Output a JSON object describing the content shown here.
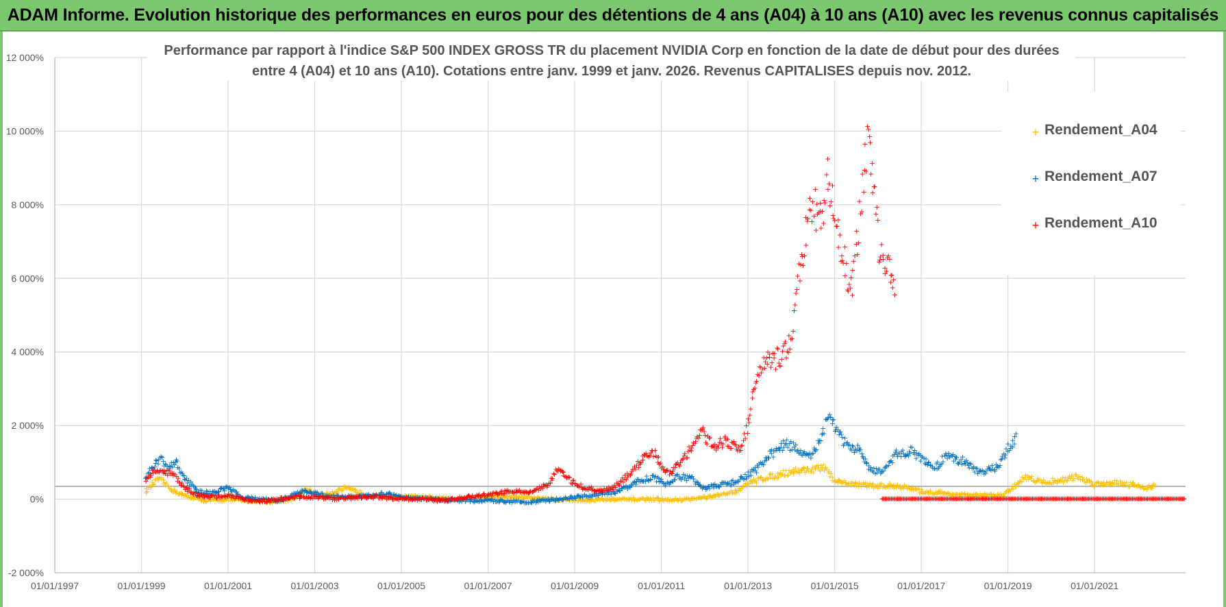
{
  "header": {
    "title": "ADAM Informe. Evolution historique des performances en euros pour des détentions de 4 ans (A04) à 10 ans (A10) avec les revenus connus capitalisés"
  },
  "colors": {
    "banner": "#7cc86e",
    "A04": "#ffc000",
    "A07": "#0070c0",
    "A10": "#ff0000",
    "grid": "#d9d9d9",
    "text": "#595959"
  },
  "chart_data": {
    "type": "scatter",
    "title_lines": [
      "Performance par rapport à l'indice S&P 500 INDEX GROSS TR  du placement NVIDIA Corp en fonction de la date de début pour des durées",
      "entre 4 (A04) et 10 ans (A10). Cotations entre janv. 1999 et janv. 2026. Revenus CAPITALISES depuis nov. 2012."
    ],
    "xlabel": "",
    "ylabel": "",
    "x_range": [
      1997.0,
      2023.1
    ],
    "ylim": [
      -2000,
      12000
    ],
    "x_ticks": [
      {
        "year": 1997,
        "label": "01/01/1997"
      },
      {
        "year": 1999,
        "label": "01/01/1999"
      },
      {
        "year": 2001,
        "label": "01/01/2001"
      },
      {
        "year": 2003,
        "label": "01/01/2003"
      },
      {
        "year": 2005,
        "label": "01/01/2005"
      },
      {
        "year": 2007,
        "label": "01/01/2007"
      },
      {
        "year": 2009,
        "label": "01/01/2009"
      },
      {
        "year": 2011,
        "label": "01/01/2011"
      },
      {
        "year": 2013,
        "label": "01/01/2013"
      },
      {
        "year": 2015,
        "label": "01/01/2015"
      },
      {
        "year": 2017,
        "label": "01/01/2017"
      },
      {
        "year": 2019,
        "label": "01/01/2019"
      },
      {
        "year": 2021,
        "label": "01/01/2021"
      }
    ],
    "y_ticks": [
      {
        "value": -2000,
        "label": "-2 000%"
      },
      {
        "value": 0,
        "label": "0%"
      },
      {
        "value": 2000,
        "label": "2 000%"
      },
      {
        "value": 4000,
        "label": "4 000%"
      },
      {
        "value": 6000,
        "label": "6 000%"
      },
      {
        "value": 8000,
        "label": "8 000%"
      },
      {
        "value": 10000,
        "label": "10 000%"
      },
      {
        "value": 12000,
        "label": "12 000%"
      }
    ],
    "reference_line": 350,
    "series": [
      {
        "name": "Rendement_A04",
        "color": "#ffc000",
        "points": [
          [
            1999.1,
            200
          ],
          [
            1999.4,
            550
          ],
          [
            1999.7,
            250
          ],
          [
            2000.0,
            80
          ],
          [
            2000.5,
            -50
          ],
          [
            2001.0,
            -20
          ],
          [
            2001.5,
            -50
          ],
          [
            2002.0,
            -80
          ],
          [
            2002.5,
            0
          ],
          [
            2002.8,
            250
          ],
          [
            2003.2,
            100
          ],
          [
            2003.7,
            280
          ],
          [
            2004.2,
            120
          ],
          [
            2004.7,
            50
          ],
          [
            2005.2,
            60
          ],
          [
            2005.7,
            30
          ],
          [
            2006.2,
            0
          ],
          [
            2006.7,
            30
          ],
          [
            2007.2,
            60
          ],
          [
            2007.7,
            50
          ],
          [
            2008.2,
            20
          ],
          [
            2008.7,
            -20
          ],
          [
            2009.2,
            -40
          ],
          [
            2009.7,
            -20
          ],
          [
            2010.2,
            -20
          ],
          [
            2010.7,
            0
          ],
          [
            2011.2,
            -40
          ],
          [
            2011.7,
            0
          ],
          [
            2012.2,
            60
          ],
          [
            2012.7,
            200
          ],
          [
            2013.0,
            400
          ],
          [
            2013.3,
            550
          ],
          [
            2013.7,
            650
          ],
          [
            2014.0,
            750
          ],
          [
            2014.5,
            800
          ],
          [
            2014.8,
            850
          ],
          [
            2015.0,
            450
          ],
          [
            2015.5,
            400
          ],
          [
            2016.0,
            350
          ],
          [
            2016.5,
            350
          ],
          [
            2017.0,
            200
          ],
          [
            2017.5,
            150
          ],
          [
            2018.0,
            100
          ],
          [
            2018.5,
            100
          ],
          [
            2018.9,
            100
          ],
          [
            2019.0,
            200
          ],
          [
            2019.2,
            400
          ],
          [
            2019.4,
            600
          ],
          [
            2019.8,
            450
          ],
          [
            2020.2,
            500
          ],
          [
            2020.6,
            600
          ],
          [
            2021.0,
            400
          ],
          [
            2021.5,
            450
          ],
          [
            2021.8,
            400
          ],
          [
            2022.2,
            300
          ],
          [
            2022.4,
            350
          ]
        ]
      },
      {
        "name": "Rendement_A07",
        "color": "#0070c0",
        "points": [
          [
            1999.1,
            600
          ],
          [
            1999.3,
            900
          ],
          [
            1999.45,
            1100
          ],
          [
            1999.6,
            800
          ],
          [
            1999.8,
            1000
          ],
          [
            2000.0,
            550
          ],
          [
            2000.3,
            200
          ],
          [
            2000.6,
            150
          ],
          [
            2001.0,
            300
          ],
          [
            2001.3,
            50
          ],
          [
            2001.7,
            0
          ],
          [
            2002.2,
            -50
          ],
          [
            2002.7,
            200
          ],
          [
            2003.0,
            150
          ],
          [
            2003.3,
            80
          ],
          [
            2003.7,
            50
          ],
          [
            2004.2,
            70
          ],
          [
            2004.7,
            150
          ],
          [
            2005.0,
            50
          ],
          [
            2005.5,
            0
          ],
          [
            2006.0,
            -30
          ],
          [
            2006.5,
            -50
          ],
          [
            2007.0,
            -50
          ],
          [
            2007.5,
            -60
          ],
          [
            2008.0,
            -80
          ],
          [
            2008.5,
            -30
          ],
          [
            2009.0,
            50
          ],
          [
            2009.5,
            100
          ],
          [
            2010.0,
            200
          ],
          [
            2010.5,
            500
          ],
          [
            2010.8,
            600
          ],
          [
            2011.1,
            400
          ],
          [
            2011.4,
            600
          ],
          [
            2011.7,
            550
          ],
          [
            2012.0,
            300
          ],
          [
            2012.5,
            400
          ],
          [
            2012.8,
            500
          ],
          [
            2013.2,
            800
          ],
          [
            2013.6,
            1300
          ],
          [
            2013.9,
            1500
          ],
          [
            2014.2,
            1300
          ],
          [
            2014.4,
            1100
          ],
          [
            2014.7,
            1600
          ],
          [
            2014.85,
            2300
          ],
          [
            2015.1,
            1800
          ],
          [
            2015.3,
            1400
          ],
          [
            2015.6,
            1300
          ],
          [
            2015.8,
            800
          ],
          [
            2016.1,
            700
          ],
          [
            2016.4,
            1200
          ],
          [
            2016.8,
            1300
          ],
          [
            2017.1,
            1000
          ],
          [
            2017.3,
            800
          ],
          [
            2017.6,
            1200
          ],
          [
            2018.0,
            1000
          ],
          [
            2018.4,
            700
          ],
          [
            2018.8,
            900
          ],
          [
            2019.0,
            1400
          ],
          [
            2019.2,
            1700
          ]
        ]
      },
      {
        "name": "Rendement_A10",
        "color": "#ff0000",
        "points": [
          [
            1999.1,
            500
          ],
          [
            1999.3,
            800
          ],
          [
            1999.5,
            700
          ],
          [
            1999.7,
            700
          ],
          [
            2000.0,
            300
          ],
          [
            2000.3,
            100
          ],
          [
            2000.7,
            50
          ],
          [
            2001.0,
            100
          ],
          [
            2001.5,
            -50
          ],
          [
            2002.0,
            -50
          ],
          [
            2002.5,
            50
          ],
          [
            2003.0,
            50
          ],
          [
            2003.5,
            0
          ],
          [
            2004.0,
            50
          ],
          [
            2004.5,
            50
          ],
          [
            2005.0,
            0
          ],
          [
            2005.5,
            0
          ],
          [
            2006.0,
            -50
          ],
          [
            2006.5,
            50
          ],
          [
            2007.0,
            100
          ],
          [
            2007.5,
            200
          ],
          [
            2008.0,
            200
          ],
          [
            2008.4,
            400
          ],
          [
            2008.6,
            800
          ],
          [
            2008.9,
            500
          ],
          [
            2009.2,
            300
          ],
          [
            2009.6,
            200
          ],
          [
            2009.9,
            300
          ],
          [
            2010.2,
            600
          ],
          [
            2010.6,
            1100
          ],
          [
            2010.8,
            1300
          ],
          [
            2011.1,
            700
          ],
          [
            2011.3,
            800
          ],
          [
            2011.6,
            1200
          ],
          [
            2011.9,
            1900
          ],
          [
            2012.2,
            1400
          ],
          [
            2012.5,
            1600
          ],
          [
            2012.8,
            1300
          ],
          [
            2013.0,
            2000
          ],
          [
            2013.1,
            2800
          ],
          [
            2013.3,
            3500
          ],
          [
            2013.5,
            3800
          ],
          [
            2013.7,
            3800
          ],
          [
            2013.9,
            4000
          ],
          [
            2014.0,
            4500
          ],
          [
            2014.1,
            5500
          ],
          [
            2014.3,
            7000
          ],
          [
            2014.5,
            8000
          ],
          [
            2014.7,
            7500
          ],
          [
            2014.85,
            8800
          ],
          [
            2015.0,
            8000
          ],
          [
            2015.2,
            6500
          ],
          [
            2015.4,
            5500
          ],
          [
            2015.6,
            8000
          ],
          [
            2015.8,
            10000
          ],
          [
            2016.0,
            7000
          ],
          [
            2016.2,
            6500
          ],
          [
            2016.4,
            5800
          ]
        ],
        "flat_segment": {
          "from": 2016.1,
          "to": 2023.1,
          "value": 0
        }
      }
    ],
    "legend": [
      "Rendement_A04",
      "Rendement_A07",
      "Rendement_A10"
    ]
  }
}
